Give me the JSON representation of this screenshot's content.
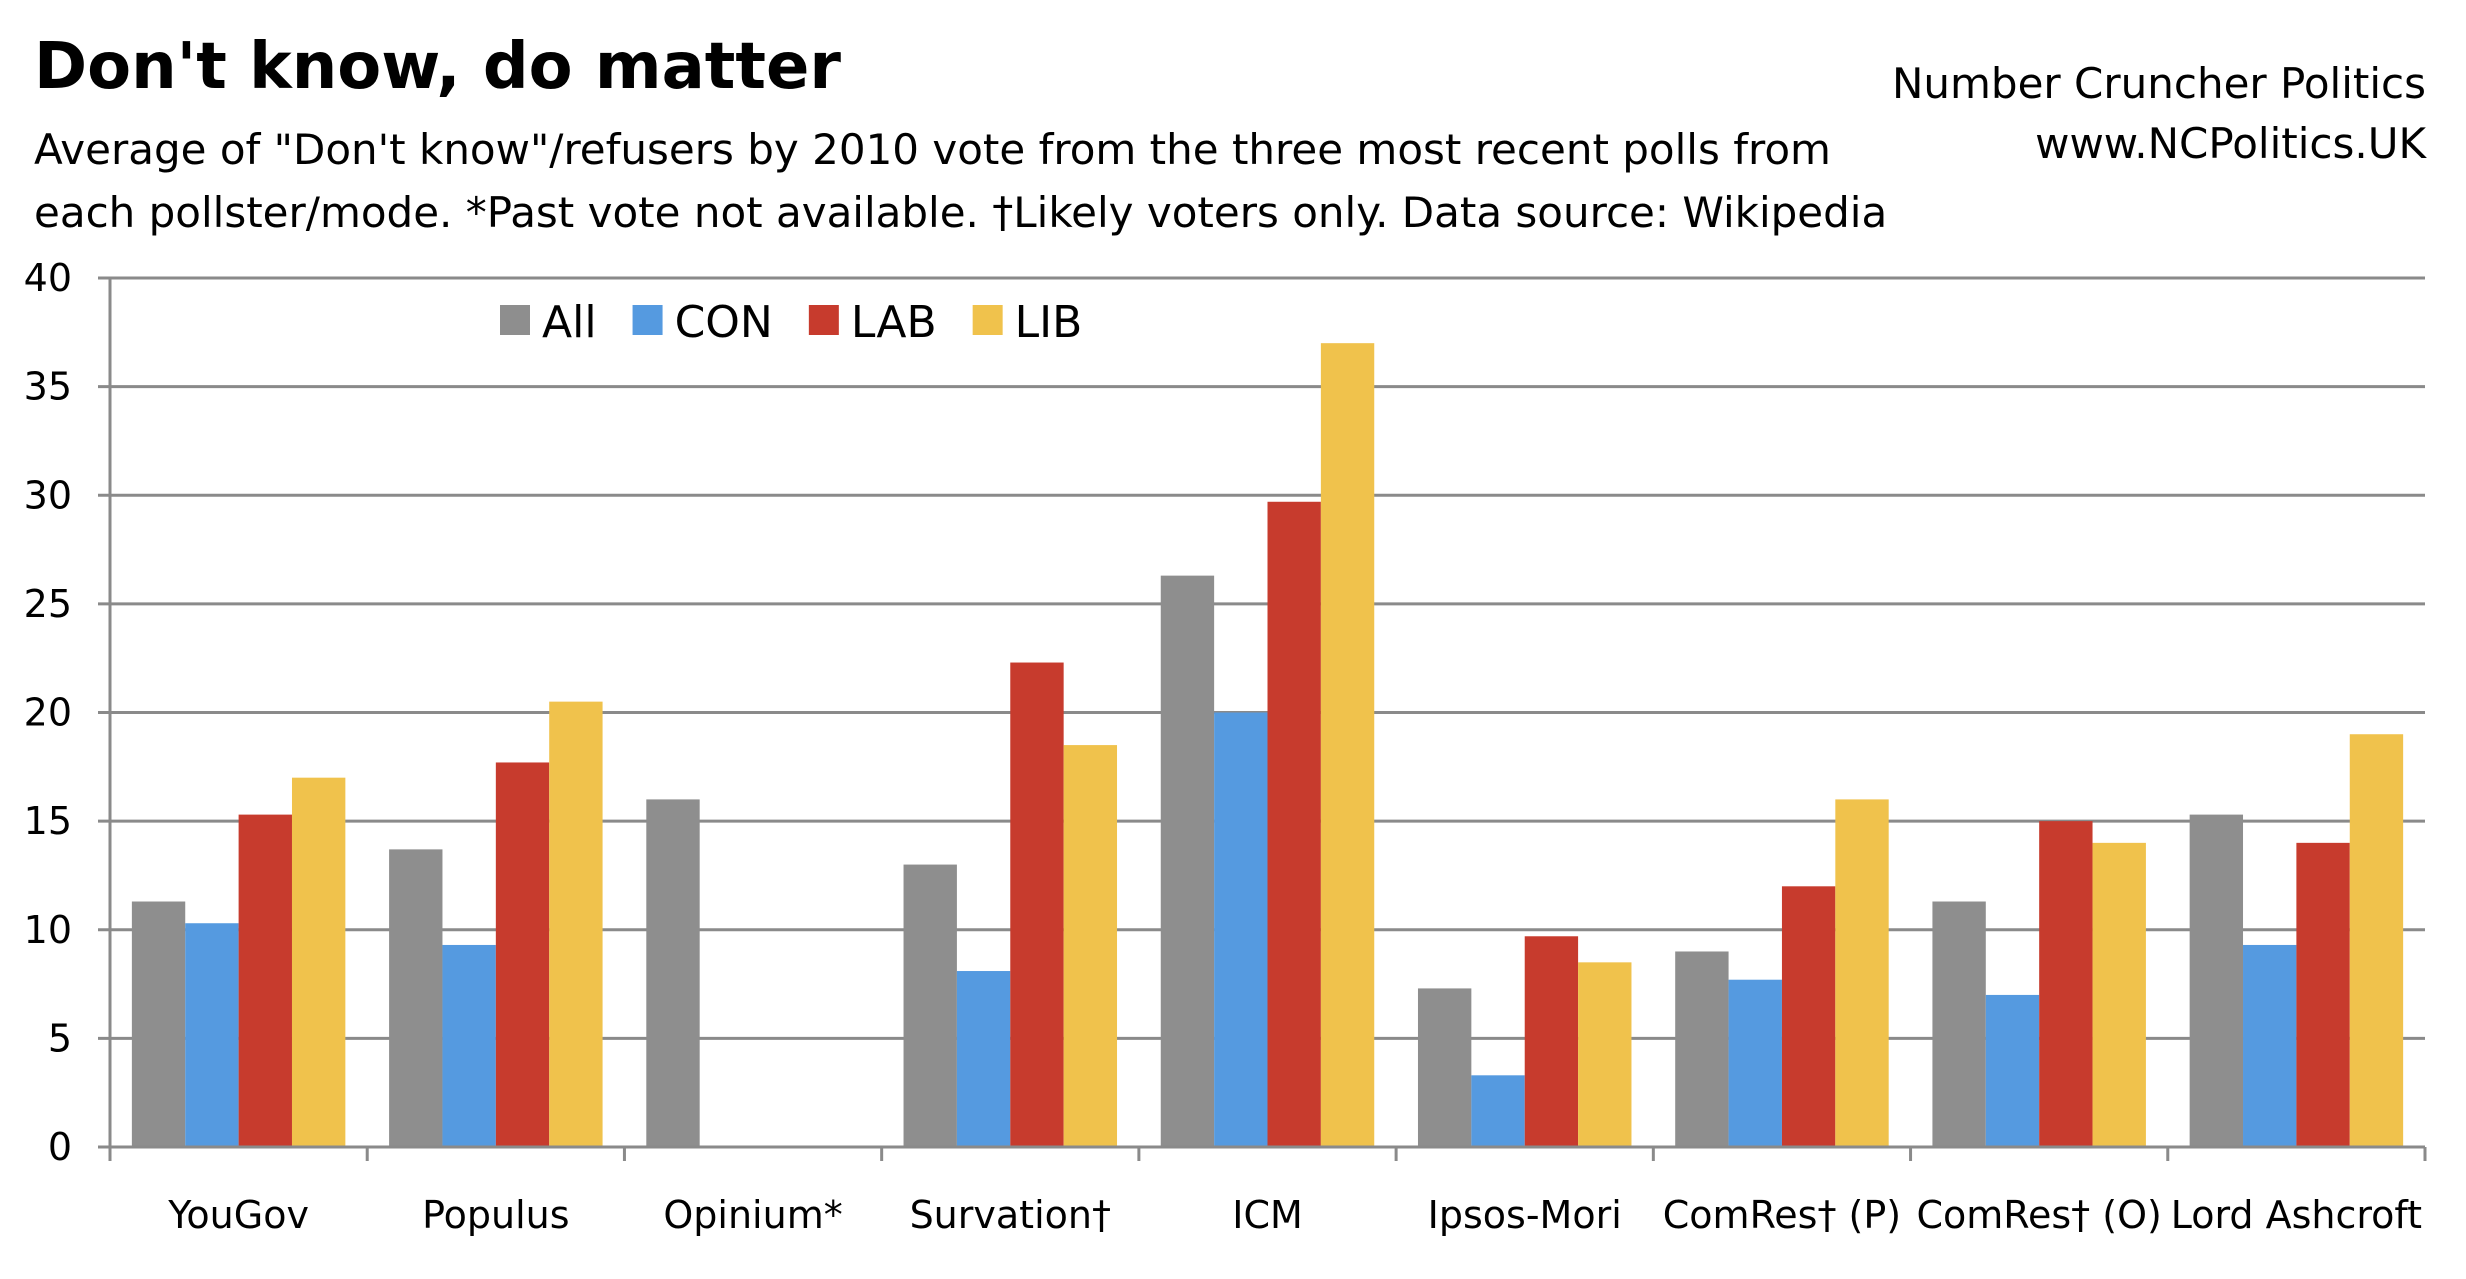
{
  "title": "Don't know, do matter",
  "subtitle": "Average of \"Don't know\"/refusers by 2010 vote from the three most recent polls from each pollster/mode. *Past vote not available. †Likely voters only. Data source: Wikipedia",
  "credit": {
    "line1": "Number Cruncher Politics",
    "line2": "www.NCPolitics.UK"
  },
  "chart_data": {
    "type": "bar",
    "categories": [
      "YouGov",
      "Populus",
      "Opinium*",
      "Survation†",
      "ICM",
      "Ipsos-Mori",
      "ComRes† (P)",
      "ComRes† (O)",
      "Lord Ashcroft"
    ],
    "series": [
      {
        "name": "All",
        "color": "#8e8e8e",
        "values": [
          11.3,
          13.7,
          16.0,
          13.0,
          26.3,
          7.3,
          9.0,
          11.3,
          15.3
        ]
      },
      {
        "name": "CON",
        "color": "#559ae0",
        "values": [
          10.3,
          9.3,
          null,
          8.1,
          20.0,
          3.3,
          7.7,
          7.0,
          9.3
        ]
      },
      {
        "name": "LAB",
        "color": "#c73b2d",
        "values": [
          15.3,
          17.7,
          null,
          22.3,
          29.7,
          9.7,
          12.0,
          15.0,
          14.0
        ]
      },
      {
        "name": "LIB",
        "color": "#f0c24c",
        "values": [
          17.0,
          20.5,
          null,
          18.5,
          37.0,
          8.5,
          16.0,
          14.0,
          19.0
        ]
      }
    ],
    "ylim": [
      0,
      40
    ],
    "yticks": [
      0,
      5,
      10,
      15,
      20,
      25,
      30,
      35,
      40
    ],
    "grid": true,
    "legend_position": "top-left",
    "xlabel": "",
    "ylabel": ""
  }
}
